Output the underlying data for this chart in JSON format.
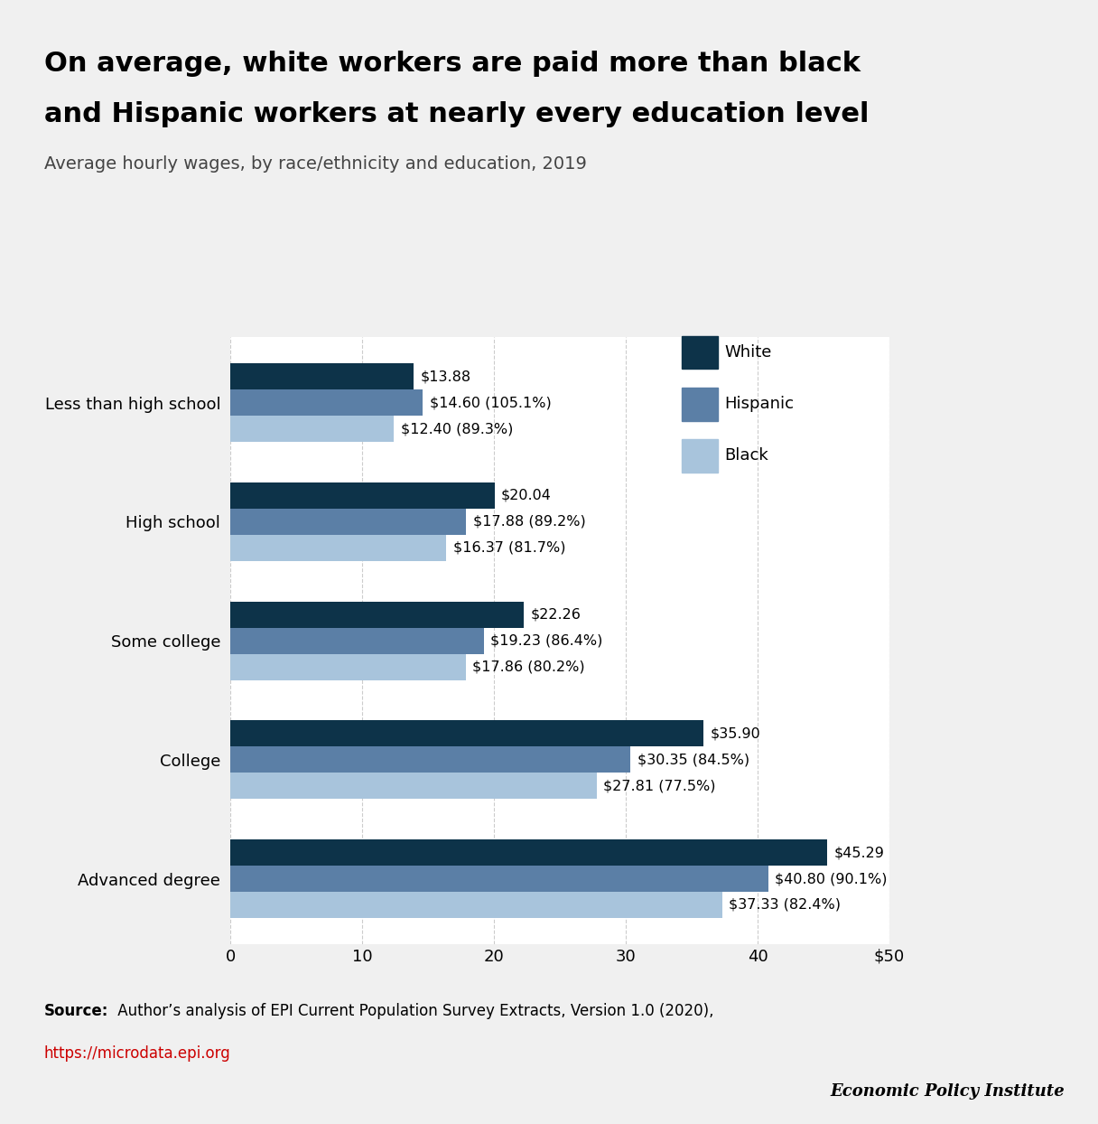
{
  "title_line1": "On average, white workers are paid more than black",
  "title_line2": "and Hispanic workers at nearly every education level",
  "subtitle": "Average hourly wages, by race/ethnicity and education, 2019",
  "categories": [
    "Less than high school",
    "High school",
    "Some college",
    "College",
    "Advanced degree"
  ],
  "white_values": [
    13.88,
    20.04,
    22.26,
    35.9,
    45.29
  ],
  "hispanic_values": [
    14.6,
    17.88,
    19.23,
    30.35,
    40.8
  ],
  "black_values": [
    12.4,
    16.37,
    17.86,
    27.81,
    37.33
  ],
  "white_labels": [
    "$13.88",
    "$20.04",
    "$22.26",
    "$35.90",
    "$45.29"
  ],
  "hispanic_labels": [
    "$14.60 (105.1%)",
    "$17.88 (89.2%)",
    "$19.23 (86.4%)",
    "$30.35 (84.5%)",
    "$40.80 (90.1%)"
  ],
  "black_labels": [
    "$12.40 (89.3%)",
    "$16.37 (81.7%)",
    "$17.86 (80.2%)",
    "$27.81 (77.5%)",
    "$37.33 (82.4%)"
  ],
  "white_color": "#0d3349",
  "hispanic_color": "#5b7fa6",
  "black_color": "#a8c4dc",
  "background_color": "#f0f0f0",
  "plot_background": "#ffffff",
  "xlim": [
    0,
    50
  ],
  "xticks": [
    0,
    10,
    20,
    30,
    40,
    50
  ],
  "xtick_labels": [
    "0",
    "10",
    "20",
    "30",
    "40",
    "$50"
  ],
  "source_bold": "Source:",
  "source_text": " Author’s analysis of EPI Current Population Survey Extracts, Version 1.0 (2020),",
  "source_url": "https://microdata.epi.org",
  "branding": "Economic Policy Institute",
  "legend_labels": [
    "White",
    "Hispanic",
    "Black"
  ]
}
